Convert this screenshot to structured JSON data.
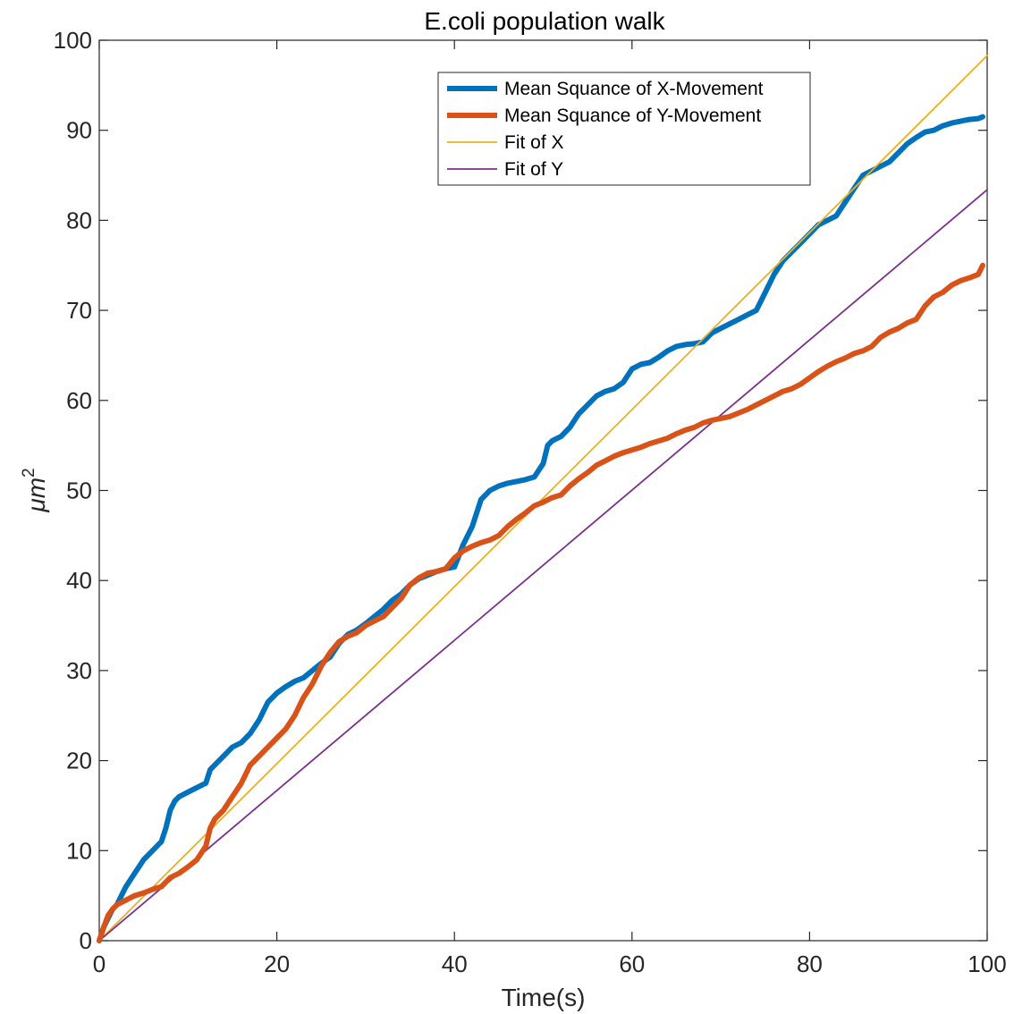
{
  "chart_data": {
    "type": "line",
    "title": "E.coli population walk",
    "xlabel": "Time(s)",
    "ylabel_base": "μm",
    "ylabel_superscript": "2",
    "xlim": [
      0,
      100
    ],
    "ylim": [
      0,
      100
    ],
    "xticks": [
      "0",
      "20",
      "40",
      "60",
      "80",
      "100"
    ],
    "yticks": [
      "0",
      "10",
      "20",
      "30",
      "40",
      "50",
      "60",
      "70",
      "80",
      "90",
      "100"
    ],
    "grid": false,
    "legend_position": "top-right",
    "series": [
      {
        "name": "Mean Squance of X-Movement",
        "color": "#0072BD",
        "style": "thick",
        "x": [
          0,
          0.5,
          1,
          1.5,
          2,
          2.5,
          3,
          4,
          5,
          6,
          7,
          7.5,
          8,
          8.5,
          9,
          10,
          11,
          12,
          12.5,
          14,
          15,
          16,
          17,
          18,
          19,
          20,
          21,
          22,
          23,
          24,
          25,
          26,
          27,
          28,
          29,
          30,
          31,
          32,
          33,
          34,
          35,
          36,
          37,
          38,
          39,
          40,
          41,
          42,
          43,
          44,
          45,
          46,
          47,
          48,
          49,
          50,
          50.5,
          51,
          52,
          53,
          54,
          55,
          56,
          57,
          58,
          59,
          60,
          61,
          62,
          63,
          64,
          65,
          66,
          67,
          68,
          69,
          70,
          71,
          72,
          73,
          74,
          75,
          76,
          77,
          78,
          79,
          80,
          81,
          82,
          83,
          84,
          85,
          86,
          87,
          88,
          89,
          90,
          91,
          92,
          93,
          94,
          95,
          96,
          97,
          98,
          99,
          99.5
        ],
        "values": [
          0,
          1.5,
          2.5,
          3.5,
          4,
          5,
          6,
          7.5,
          9,
          10,
          11,
          12.5,
          14.5,
          15.5,
          16,
          16.5,
          17,
          17.5,
          19,
          20.5,
          21.5,
          22,
          23,
          24.5,
          26.5,
          27.5,
          28.2,
          28.8,
          29.2,
          30,
          30.8,
          31.5,
          33,
          34,
          34.5,
          35.2,
          36,
          36.8,
          37.8,
          38.5,
          39.5,
          40.2,
          40.6,
          41,
          41.3,
          41.5,
          44,
          46,
          49,
          50,
          50.5,
          50.8,
          51,
          51.2,
          51.5,
          53,
          55,
          55.5,
          56,
          57,
          58.5,
          59.5,
          60.5,
          61,
          61.3,
          62,
          63.5,
          64,
          64.2,
          64.8,
          65.5,
          66,
          66.2,
          66.3,
          66.5,
          67.5,
          68,
          68.5,
          69,
          69.5,
          70,
          72,
          74,
          75.5,
          76.5,
          77.5,
          78.5,
          79.5,
          80,
          80.5,
          82,
          83.5,
          85,
          85.5,
          86,
          86.5,
          87.5,
          88.5,
          89.2,
          89.8,
          90,
          90.5,
          90.8,
          91,
          91.2,
          91.3,
          91.5
        ]
      },
      {
        "name": "Mean Squance of Y-Movement",
        "color": "#D95319",
        "style": "thick",
        "x": [
          0,
          0.5,
          1,
          1.5,
          2,
          3,
          4,
          5,
          6,
          7,
          8,
          9,
          10,
          11,
          12,
          12.5,
          13,
          14,
          15,
          16,
          17,
          18,
          19,
          20,
          21,
          22,
          23,
          24,
          25,
          26,
          27,
          28,
          29,
          30,
          31,
          32,
          33,
          34,
          35,
          36,
          37,
          38,
          39,
          40,
          41,
          42,
          43,
          44,
          45,
          46,
          47,
          48,
          49,
          50,
          51,
          52,
          53,
          54,
          55,
          56,
          57,
          58,
          59,
          60,
          61,
          62,
          63,
          64,
          65,
          66,
          67,
          68,
          69,
          70,
          71,
          72,
          73,
          74,
          75,
          76,
          77,
          78,
          79,
          80,
          81,
          82,
          83,
          84,
          85,
          86,
          87,
          88,
          89,
          90,
          91,
          92,
          93,
          94,
          95,
          96,
          97,
          98,
          99,
          99.5
        ],
        "values": [
          0,
          1.5,
          2.8,
          3.5,
          4,
          4.5,
          5,
          5.3,
          5.7,
          6,
          7,
          7.5,
          8.2,
          9,
          10.5,
          12.5,
          13.5,
          14.5,
          16,
          17.5,
          19.5,
          20.5,
          21.5,
          22.5,
          23.5,
          25,
          27,
          28.5,
          30.5,
          32,
          33.2,
          33.8,
          34.2,
          35,
          35.5,
          36,
          37,
          38,
          39.5,
          40.3,
          40.8,
          41,
          41.3,
          42.5,
          43.3,
          43.8,
          44.2,
          44.5,
          45,
          46,
          46.8,
          47.5,
          48.3,
          48.7,
          49.2,
          49.5,
          50.5,
          51.3,
          52,
          52.8,
          53.3,
          53.8,
          54.2,
          54.5,
          54.8,
          55.2,
          55.5,
          55.8,
          56.3,
          56.7,
          57,
          57.5,
          57.8,
          58,
          58.2,
          58.6,
          59,
          59.5,
          60,
          60.5,
          61,
          61.3,
          61.8,
          62.5,
          63.2,
          63.8,
          64.3,
          64.7,
          65.2,
          65.5,
          66,
          67,
          67.6,
          68,
          68.6,
          69,
          70.5,
          71.5,
          72,
          72.8,
          73.3,
          73.6,
          74,
          75
        ]
      },
      {
        "name": "Fit of X",
        "color": "#EDB120",
        "style": "thin",
        "x": [
          0,
          100
        ],
        "values": [
          0,
          98.3
        ]
      },
      {
        "name": "Fit of Y",
        "color": "#7E2F8E",
        "style": "thin",
        "x": [
          0,
          100
        ],
        "values": [
          0,
          83.4
        ]
      }
    ]
  }
}
